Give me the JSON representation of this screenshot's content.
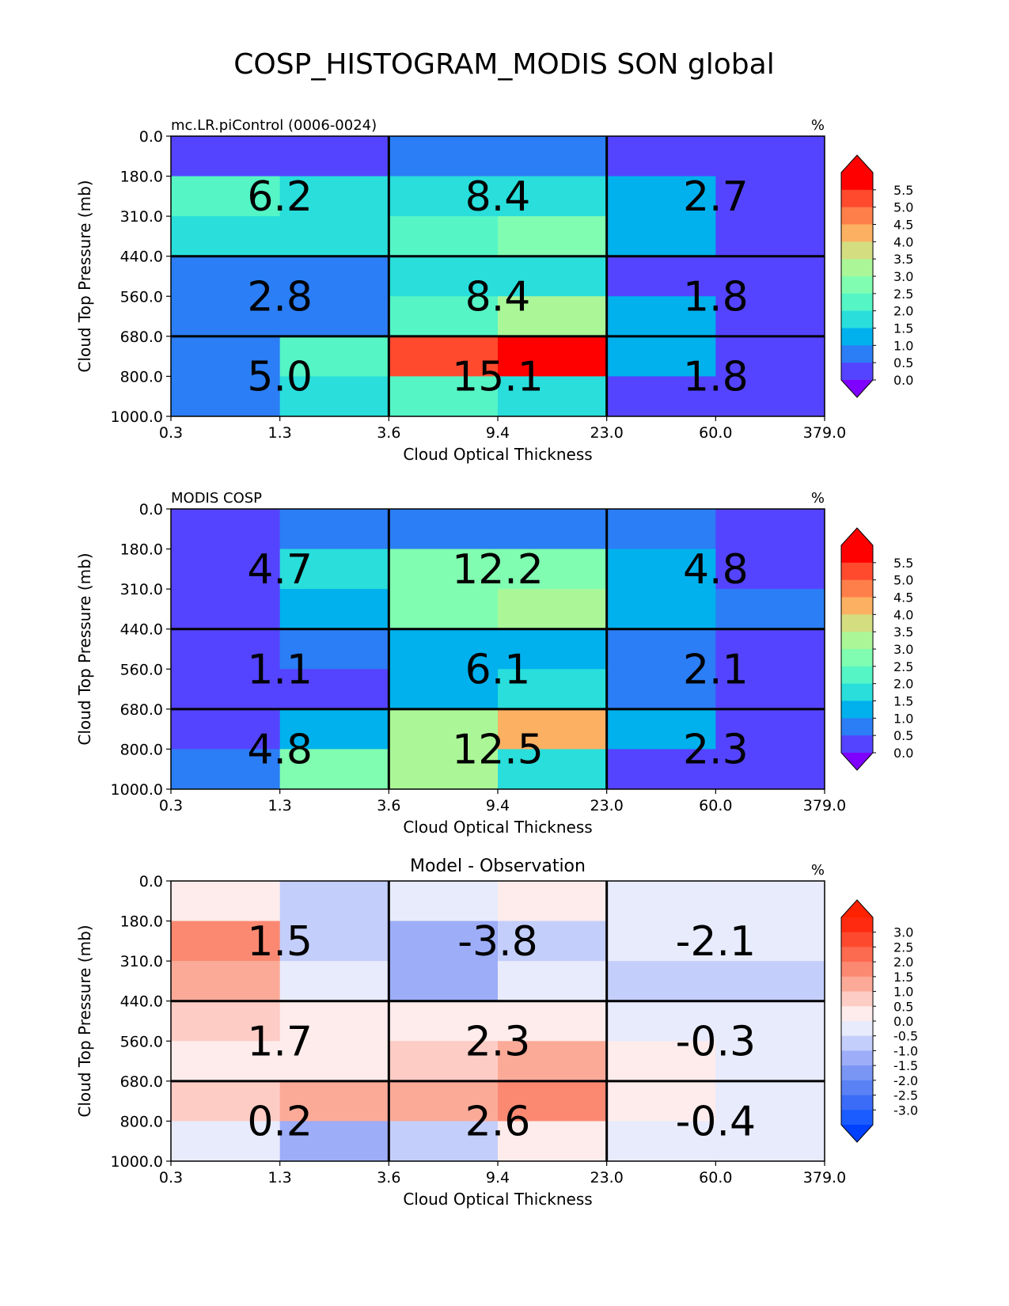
{
  "figure_title": "COSP_HISTOGRAM_MODIS SON global",
  "chart_data": [
    {
      "type": "heatmap",
      "title": "",
      "left_title": "mc.LR.piControl (0006-0024)",
      "right_title": "%",
      "xlabel": "Cloud Optical Thickness",
      "ylabel": "Cloud Top Pressure (mb)",
      "x_tick_labels": [
        "0.3",
        "1.3",
        "3.6",
        "9.4",
        "23.0",
        "60.0",
        "379.0"
      ],
      "y_tick_labels": [
        "0.0",
        "180.0",
        "310.0",
        "440.0",
        "560.0",
        "680.0",
        "800.0",
        "1000.0"
      ],
      "values": [
        [
          0.3,
          0.3,
          0.8,
          0.8,
          0.4,
          0.4
        ],
        [
          2.3,
          1.6,
          1.8,
          1.8,
          1.0,
          0.4
        ],
        [
          1.6,
          1.6,
          2.2,
          2.8,
          1.0,
          0.4
        ],
        [
          0.9,
          0.9,
          1.6,
          1.8,
          0.4,
          0.4
        ],
        [
          0.9,
          0.9,
          2.4,
          3.1,
          1.3,
          0.4
        ],
        [
          0.8,
          2.4,
          5.1,
          6.1,
          1.3,
          0.4
        ],
        [
          0.8,
          1.5,
          2.3,
          1.8,
          0.4,
          0.4
        ]
      ],
      "box_values": [
        "6.2",
        "8.4",
        "2.7",
        "2.8",
        "8.4",
        "1.8",
        "5.0",
        "15.1",
        "1.8"
      ],
      "colorbar": {
        "type": "sequential",
        "tick_labels": [
          "5.5",
          "5.0",
          "4.5",
          "4.0",
          "3.5",
          "3.0",
          "2.5",
          "2.0",
          "1.5",
          "1.0",
          "0.5",
          "0.0"
        ],
        "colors": [
          "#5544ff",
          "#2b7ef5",
          "#00b1ed",
          "#29dedb",
          "#55f5c5",
          "#80fdb0",
          "#abf798",
          "#d4dd80",
          "#fcb062",
          "#ff7f4a",
          "#ff4a2e",
          "#ff0000"
        ],
        "under_color": "#7f00ff",
        "over_color": "#ff0000"
      }
    },
    {
      "type": "heatmap",
      "title": "",
      "left_title": "MODIS COSP",
      "right_title": "%",
      "xlabel": "Cloud Optical Thickness",
      "ylabel": "Cloud Top Pressure (mb)",
      "x_tick_labels": [
        "0.3",
        "1.3",
        "3.6",
        "9.4",
        "23.0",
        "60.0",
        "379.0"
      ],
      "y_tick_labels": [
        "0.0",
        "180.0",
        "310.0",
        "440.0",
        "560.0",
        "680.0",
        "800.0",
        "1000.0"
      ],
      "values": [
        [
          0.4,
          0.8,
          0.8,
          0.8,
          0.8,
          0.4
        ],
        [
          0.4,
          1.8,
          2.8,
          2.8,
          1.2,
          0.4
        ],
        [
          0.4,
          1.3,
          2.8,
          3.1,
          1.3,
          0.8
        ],
        [
          0.4,
          0.8,
          1.3,
          1.3,
          0.8,
          0.4
        ],
        [
          0.4,
          0.4,
          1.3,
          1.8,
          0.8,
          0.4
        ],
        [
          0.4,
          1.3,
          3.3,
          4.2,
          1.3,
          0.4
        ],
        [
          0.8,
          2.8,
          3.1,
          1.8,
          0.4,
          0.4
        ]
      ],
      "box_values": [
        "4.7",
        "12.2",
        "4.8",
        "1.1",
        "6.1",
        "2.1",
        "4.8",
        "12.5",
        "2.3"
      ],
      "colorbar": {
        "type": "sequential",
        "tick_labels": [
          "5.5",
          "5.0",
          "4.5",
          "4.0",
          "3.5",
          "3.0",
          "2.5",
          "2.0",
          "1.5",
          "1.0",
          "0.5",
          "0.0"
        ],
        "colors": [
          "#5544ff",
          "#2b7ef5",
          "#00b1ed",
          "#29dedb",
          "#55f5c5",
          "#80fdb0",
          "#abf798",
          "#d4dd80",
          "#fcb062",
          "#ff7f4a",
          "#ff4a2e",
          "#ff0000"
        ],
        "under_color": "#7f00ff",
        "over_color": "#ff0000"
      }
    },
    {
      "type": "heatmap",
      "title": "Model - Observation",
      "left_title": "",
      "right_title": "%",
      "xlabel": "Cloud Optical Thickness",
      "ylabel": "Cloud Top Pressure (mb)",
      "x_tick_labels": [
        "0.3",
        "1.3",
        "3.6",
        "9.4",
        "23.0",
        "60.0",
        "379.0"
      ],
      "y_tick_labels": [
        "0.0",
        "180.0",
        "310.0",
        "440.0",
        "560.0",
        "680.0",
        "800.0",
        "1000.0"
      ],
      "values": [
        [
          0.2,
          -0.7,
          -0.2,
          0.2,
          -0.2,
          -0.2
        ],
        [
          1.7,
          -0.7,
          -1.2,
          -0.7,
          -0.2,
          -0.2
        ],
        [
          1.2,
          -0.2,
          -1.2,
          -0.2,
          -0.7,
          -0.7
        ],
        [
          0.7,
          0.2,
          0.2,
          0.2,
          -0.2,
          -0.2
        ],
        [
          0.2,
          0.2,
          0.7,
          1.2,
          0.2,
          -0.2
        ],
        [
          0.7,
          1.2,
          1.2,
          1.7,
          0.2,
          -0.2
        ],
        [
          -0.2,
          -1.2,
          -0.7,
          0.2,
          -0.2,
          -0.2
        ]
      ],
      "box_values": [
        "1.5",
        "-3.8",
        "-2.1",
        "1.7",
        "2.3",
        "-0.3",
        "0.2",
        "2.6",
        "-0.4"
      ],
      "colorbar": {
        "type": "diverging",
        "tick_labels": [
          "3.0",
          "2.5",
          "2.0",
          "1.5",
          "1.0",
          "0.5",
          "0.0",
          "-0.5",
          "-1.0",
          "-1.5",
          "-2.0",
          "-2.5",
          "-3.0"
        ],
        "colors": [
          "#1a5cff",
          "#3a6cf8",
          "#5a82f5",
          "#7a96f4",
          "#9dadf8",
          "#c4cefb",
          "#e8ebfc",
          "#fdeceb",
          "#fdccc5",
          "#fcaa98",
          "#fb8972",
          "#fc6a4f",
          "#fd4a2e",
          "#ff2a10"
        ],
        "under_color": "#0040ff",
        "over_color": "#ff2200"
      }
    }
  ]
}
